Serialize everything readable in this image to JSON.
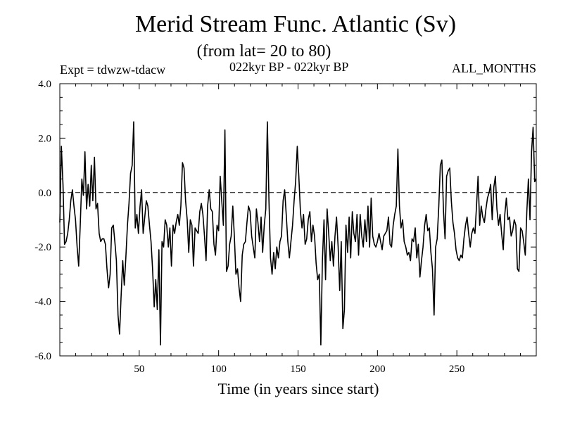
{
  "header": {
    "title": "Merid Stream Func. Atlantic (Sv)",
    "subtitle": "(from lat= 20 to 80)",
    "experiment": "Expt = tdwzw-tdacw",
    "period": "022kyr BP - 022kyr BP",
    "months": "ALL_MONTHS"
  },
  "chart_data": {
    "type": "line",
    "title": "Merid Stream Func. Atlantic (Sv)",
    "subtitle": "(from lat= 20 to 80)",
    "xlabel": "Time (in years since start)",
    "ylabel": "",
    "xlim": [
      0,
      300
    ],
    "ylim": [
      -6.0,
      4.0
    ],
    "x_ticks": [
      50,
      100,
      150,
      200,
      250
    ],
    "y_ticks": [
      -6.0,
      -4.0,
      -2.0,
      0.0,
      2.0,
      4.0
    ],
    "y_tick_labels": [
      "-6.0",
      "-4.0",
      "-2.0",
      "0.0",
      "2.0",
      "4.0"
    ],
    "reference_line": {
      "y": 0.0,
      "style": "dashed"
    },
    "line_color": "#000000",
    "grid": false,
    "series": [
      {
        "values": [
          -1.1,
          1.7,
          0.3,
          -1.9,
          -1.8,
          -1.5,
          -1.0,
          -0.3,
          0.1,
          -0.5,
          -1.0,
          -2.0,
          -2.7,
          -1.2,
          0.5,
          -0.1,
          1.5,
          -0.6,
          0.3,
          -0.5,
          1.0,
          -0.3,
          1.3,
          -0.6,
          -0.4,
          -1.5,
          -1.8,
          -1.7,
          -1.7,
          -1.9,
          -2.8,
          -3.5,
          -3.0,
          -1.3,
          -1.2,
          -1.8,
          -2.5,
          -4.5,
          -5.2,
          -3.8,
          -2.5,
          -3.4,
          -2.4,
          -1.2,
          -0.4,
          0.7,
          1.0,
          2.6,
          -1.3,
          -0.8,
          -1.5,
          -0.5,
          0.1,
          -1.5,
          -0.9,
          -0.3,
          -0.5,
          -1.2,
          -1.8,
          -2.8,
          -4.2,
          -3.2,
          -4.3,
          -2.1,
          -5.6,
          -1.8,
          -2.0,
          -1.0,
          -1.2,
          -2.0,
          -1.3,
          -2.7,
          -1.2,
          -1.5,
          -1.1,
          -0.8,
          -1.2,
          -0.5,
          1.1,
          0.9,
          -0.3,
          -1.0,
          -2.2,
          -1.0,
          -1.2,
          -2.7,
          -1.3,
          -1.4,
          -1.5,
          -0.7,
          -0.4,
          -0.8,
          -1.6,
          -2.5,
          -0.5,
          0.1,
          -0.6,
          -0.7,
          -1.9,
          -2.3,
          -1.2,
          -1.4,
          0.6,
          -0.3,
          -1.2,
          2.3,
          -2.9,
          -2.7,
          -1.9,
          -1.6,
          -0.5,
          -1.6,
          -3.0,
          -2.8,
          -3.5,
          -4.0,
          -2.3,
          -1.9,
          -1.8,
          -1.1,
          -0.5,
          -0.7,
          -1.6,
          -2.0,
          -2.4,
          -0.6,
          -1.1,
          -1.8,
          -0.9,
          -2.2,
          -1.2,
          -0.6,
          2.6,
          -0.3,
          -2.4,
          -3.0,
          -2.2,
          -2.8,
          -2.0,
          -2.4,
          -1.8,
          -1.6,
          -0.3,
          0.1,
          -0.8,
          -1.8,
          -2.4,
          -1.8,
          -1.2,
          -0.3,
          0.4,
          1.7,
          0.6,
          -0.7,
          -1.3,
          -0.8,
          -1.9,
          -1.7,
          -1.0,
          -0.7,
          -1.8,
          -1.2,
          -1.6,
          -2.6,
          -3.2,
          -3.0,
          -5.6,
          -2.5,
          -1.0,
          -3.2,
          -0.6,
          -1.5,
          -2.5,
          -1.8,
          -2.7,
          -1.6,
          -0.9,
          -2.0,
          -3.6,
          -1.8,
          -5.0,
          -4.3,
          -1.2,
          -2.2,
          -0.9,
          -2.4,
          -0.7,
          -1.5,
          -1.8,
          -0.8,
          -2.3,
          -0.8,
          -1.6,
          -2.0,
          -1.0,
          -1.8,
          -0.5,
          -2.0,
          -0.2,
          -1.6,
          -1.9,
          -2.0,
          -1.8,
          -1.5,
          -1.8,
          -2.1,
          -1.6,
          -1.5,
          -1.4,
          -0.9,
          -1.9,
          -2.0,
          -1.2,
          -0.8,
          -0.5,
          1.6,
          -0.5,
          -1.3,
          -1.0,
          -1.8,
          -2.0,
          -2.3,
          -2.2,
          -2.5,
          -1.7,
          -1.8,
          -1.3,
          -2.4,
          -1.9,
          -3.1,
          -2.5,
          -2.0,
          -1.2,
          -0.8,
          -1.4,
          -1.3,
          -2.2,
          -2.8,
          -4.5,
          -2.0,
          -1.7,
          -0.5,
          1.0,
          1.2,
          -0.7,
          -1.7,
          0.6,
          0.8,
          0.9,
          -0.3,
          -1.1,
          -1.5,
          -2.1,
          -2.4,
          -2.5,
          -2.3,
          -2.4,
          -1.7,
          -1.2,
          -0.9,
          -1.5,
          -2.0,
          -1.5,
          -1.3,
          -1.5,
          -0.5,
          0.6,
          -1.2,
          -0.5,
          -0.9,
          -1.1,
          -0.6,
          -0.2,
          0.0,
          0.3,
          -1.0,
          0.2,
          0.6,
          -0.6,
          -1.2,
          -0.8,
          -1.5,
          -2.1,
          -0.8,
          -0.2,
          -1.0,
          -0.9,
          -1.6,
          -1.4,
          -1.0,
          -1.2,
          -2.8,
          -2.9,
          -1.3,
          -1.4,
          -1.8,
          -2.3,
          -0.7,
          0.5,
          -1.0,
          1.5,
          2.4,
          0.4,
          0.5
        ]
      }
    ]
  }
}
